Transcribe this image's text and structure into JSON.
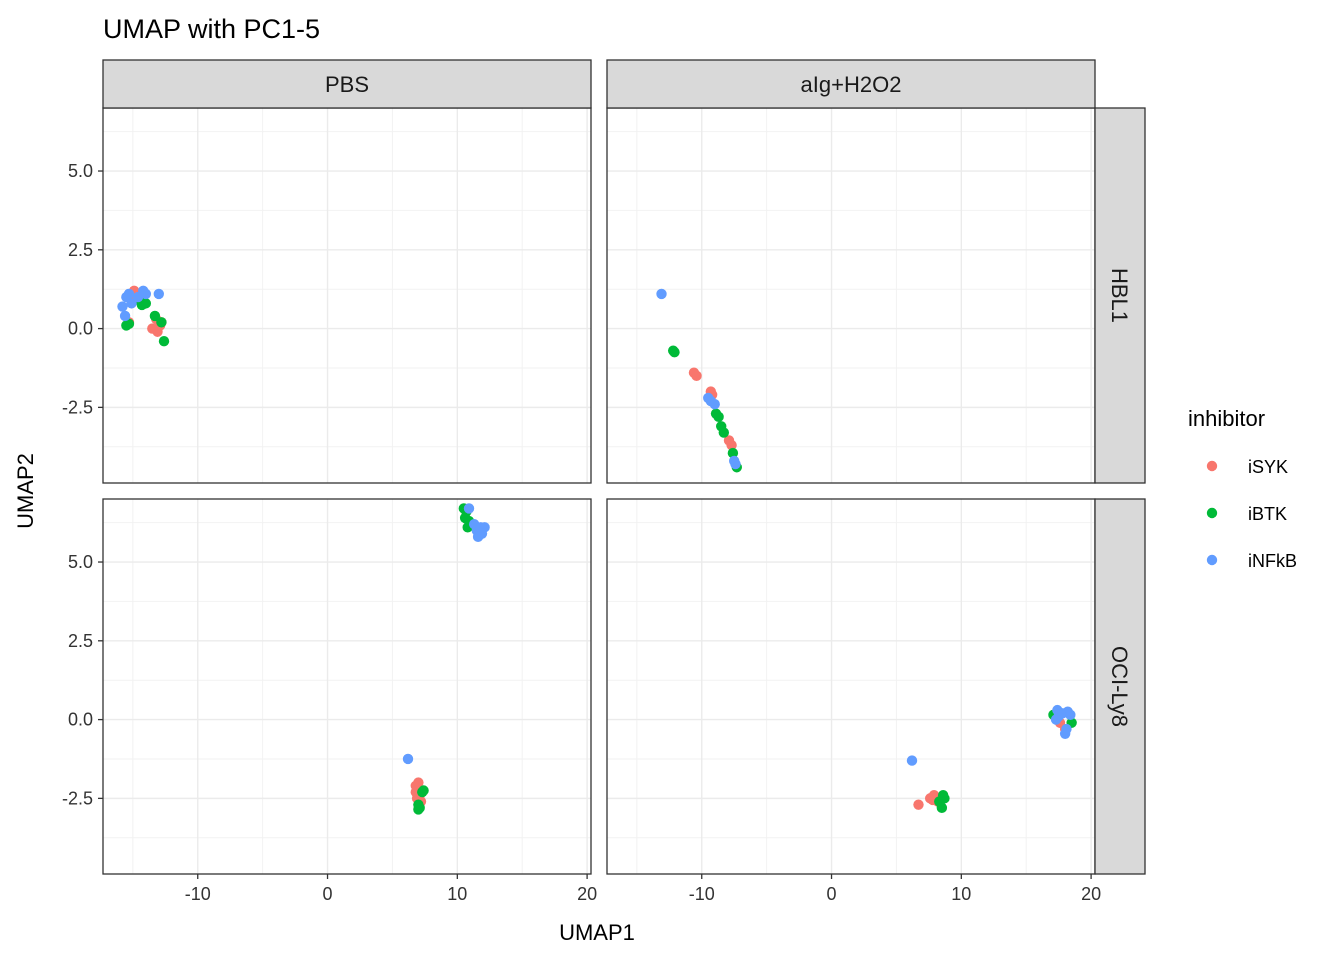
{
  "chart_data": {
    "type": "scatter",
    "title": "UMAP with PC1-5",
    "xlabel": "UMAP1",
    "ylabel": "UMAP2",
    "xlim": [
      -17.3,
      20.3
    ],
    "ylim": [
      -4.9,
      7.0
    ],
    "x_ticks": [
      -10,
      0,
      10,
      20
    ],
    "x_tick_labels": [
      "-10",
      "0",
      "10",
      "20"
    ],
    "y_ticks": [
      -2.5,
      0.0,
      2.5,
      5.0
    ],
    "y_tick_labels": [
      "-2.5",
      "0.0",
      "2.5",
      "5.0"
    ],
    "grid": true,
    "facet_cols": [
      "PBS",
      "aIg+H2O2"
    ],
    "facet_rows": [
      "HBL1",
      "OCI-Ly8"
    ],
    "legend": {
      "title": "inhibitor",
      "placement": "right",
      "entries": [
        {
          "label": "iSYK",
          "color": "#F8766D"
        },
        {
          "label": "iBTK",
          "color": "#00BA38"
        },
        {
          "label": "iNFkB",
          "color": "#619CFF"
        }
      ]
    },
    "panels": [
      {
        "row": "HBL1",
        "col": "PBS",
        "series": [
          {
            "name": "iSYK",
            "x": [
              -14.9,
              -14.5,
              -15.3,
              -13.2,
              -12.9,
              -13.1,
              -13.5,
              -12.8,
              -15.0,
              -14.2
            ],
            "y": [
              1.2,
              1.1,
              0.2,
              0.3,
              0.1,
              -0.1,
              0.0,
              0.2,
              0.9,
              1.0
            ]
          },
          {
            "name": "iBTK",
            "x": [
              -14.5,
              -14.0,
              -13.3,
              -12.8,
              -12.6,
              -15.5,
              -15.3,
              -14.3
            ],
            "y": [
              0.9,
              0.8,
              0.4,
              0.2,
              -0.4,
              0.1,
              0.15,
              0.75
            ]
          },
          {
            "name": "iNFkB",
            "x": [
              -15.5,
              -15.3,
              -15.1,
              -14.2,
              -14.0,
              -13.0,
              -15.8,
              -15.6,
              -14.6
            ],
            "y": [
              1.0,
              1.1,
              0.8,
              1.2,
              1.1,
              1.1,
              0.7,
              0.4,
              1.0
            ]
          }
        ]
      },
      {
        "row": "HBL1",
        "col": "aIg+H2O2",
        "series": [
          {
            "name": "iSYK",
            "x": [
              -10.6,
              -10.4,
              -9.3,
              -9.2,
              -7.9,
              -7.7
            ],
            "y": [
              -1.4,
              -1.5,
              -2.0,
              -2.1,
              -3.55,
              -3.7
            ]
          },
          {
            "name": "iBTK",
            "x": [
              -12.2,
              -12.1,
              -8.9,
              -8.7,
              -8.5,
              -8.3,
              -7.6,
              -7.3
            ],
            "y": [
              -0.7,
              -0.75,
              -2.7,
              -2.8,
              -3.1,
              -3.3,
              -3.95,
              -4.4
            ]
          },
          {
            "name": "iNFkB",
            "x": [
              -13.1,
              -9.5,
              -9.3,
              -9.0,
              -7.5,
              -7.4
            ],
            "y": [
              1.1,
              -2.2,
              -2.3,
              -2.4,
              -4.2,
              -4.3
            ]
          }
        ]
      },
      {
        "row": "OCI-Ly8",
        "col": "PBS",
        "series": [
          {
            "name": "iSYK",
            "x": [
              6.8,
              7.0,
              6.8,
              7.1,
              7.2,
              6.9,
              7.0
            ],
            "y": [
              -2.1,
              -2.0,
              -2.3,
              -2.4,
              -2.6,
              -2.5,
              -2.2
            ]
          },
          {
            "name": "iBTK",
            "x": [
              10.5,
              10.7,
              10.9,
              10.6,
              10.8,
              7.0,
              7.3,
              7.4,
              7.1,
              7.0
            ],
            "y": [
              6.7,
              6.6,
              6.3,
              6.4,
              6.1,
              -2.7,
              -2.3,
              -2.25,
              -2.8,
              -2.85
            ]
          },
          {
            "name": "iNFkB",
            "x": [
              10.9,
              11.3,
              11.5,
              11.8,
              12.1,
              11.6,
              11.9,
              6.2
            ],
            "y": [
              6.7,
              6.2,
              6.0,
              6.1,
              6.1,
              5.8,
              5.9,
              -1.25
            ]
          }
        ]
      },
      {
        "row": "OCI-Ly8",
        "col": "aIg+H2O2",
        "series": [
          {
            "name": "iSYK",
            "x": [
              6.7,
              7.6,
              7.9,
              8.2,
              7.8,
              18.0,
              17.6
            ],
            "y": [
              -2.7,
              -2.5,
              -2.4,
              -2.6,
              -2.55,
              -0.3,
              -0.1
            ]
          },
          {
            "name": "iBTK",
            "x": [
              8.6,
              8.3,
              8.5,
              8.7,
              17.1,
              17.3,
              18.5
            ],
            "y": [
              -2.4,
              -2.6,
              -2.8,
              -2.5,
              0.15,
              0.1,
              -0.1
            ]
          },
          {
            "name": "iNFkB",
            "x": [
              6.2,
              17.4,
              17.5,
              17.8,
              18.2,
              18.4,
              18.0,
              18.1,
              17.3
            ],
            "y": [
              -1.3,
              0.3,
              0.1,
              0.2,
              0.25,
              0.15,
              -0.45,
              -0.3,
              0.0
            ]
          }
        ]
      }
    ]
  }
}
